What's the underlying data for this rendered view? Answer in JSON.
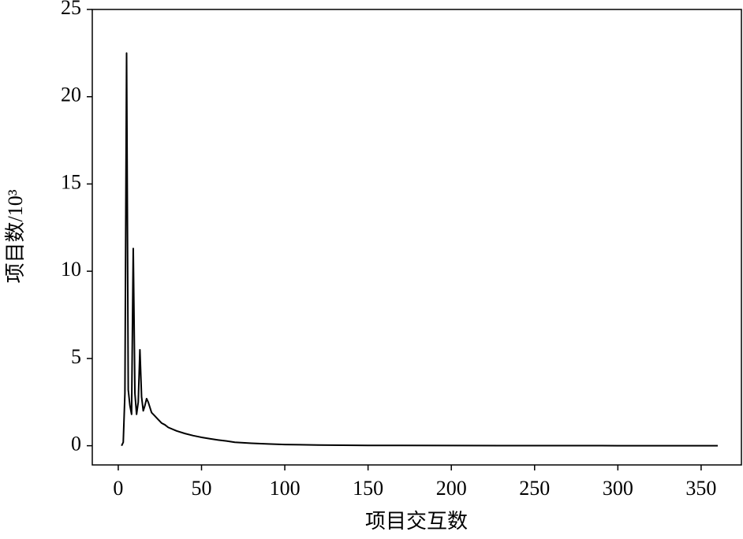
{
  "chart_data": {
    "type": "line",
    "xlabel": "项目交互数",
    "ylabel": "项目数/10³",
    "x": [
      2,
      3,
      4,
      5,
      6,
      7,
      8,
      9,
      10,
      11,
      12,
      13,
      14,
      15,
      16,
      17,
      18,
      19,
      20,
      22,
      24,
      26,
      28,
      30,
      35,
      40,
      45,
      50,
      55,
      60,
      65,
      70,
      80,
      90,
      100,
      120,
      150,
      200,
      250,
      300,
      360
    ],
    "values": [
      0,
      0.2,
      3,
      22.5,
      3.2,
      2.3,
      1.8,
      11.3,
      3.0,
      1.8,
      2.5,
      5.5,
      2.8,
      2.0,
      2.3,
      2.7,
      2.5,
      2.2,
      1.9,
      1.7,
      1.5,
      1.3,
      1.2,
      1.05,
      0.85,
      0.7,
      0.58,
      0.48,
      0.4,
      0.33,
      0.27,
      0.2,
      0.14,
      0.1,
      0.07,
      0.04,
      0.02,
      0.01,
      0.005,
      0.003,
      0
    ],
    "color": "#000000",
    "xlim": [
      -15.6,
      374.2
    ],
    "ylim": [
      -1.1,
      25
    ],
    "xticks": [
      0,
      50,
      100,
      150,
      200,
      250,
      300,
      350
    ],
    "yticks": [
      0,
      5,
      10,
      15,
      20,
      25
    ],
    "grid": false
  }
}
